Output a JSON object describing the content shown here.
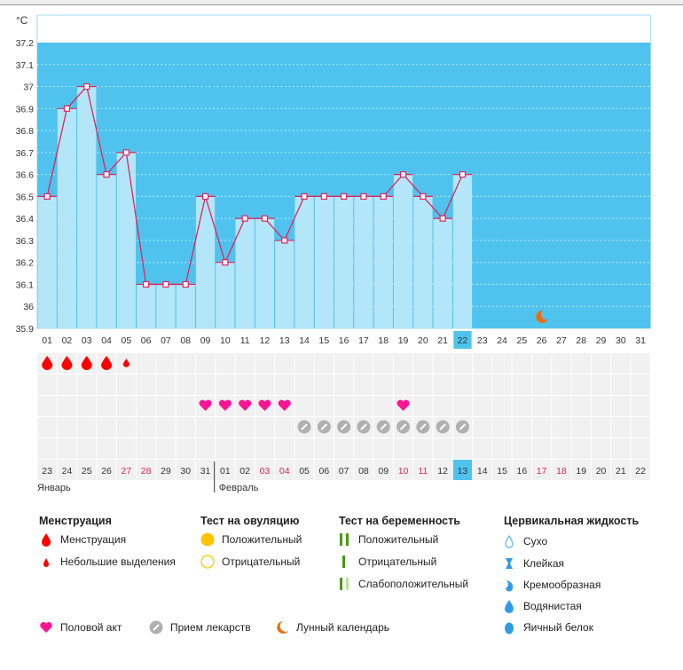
{
  "chart": {
    "unit": "°C",
    "y_ticks": [
      "37.2",
      "37.1",
      "37",
      "36.9",
      "36.8",
      "36.7",
      "36.6",
      "36.5",
      "36.4",
      "36.3",
      "36.2",
      "36.1",
      "36",
      "35.9"
    ],
    "ylim": [
      35.9,
      37.2
    ],
    "cycle_days": [
      "01",
      "02",
      "03",
      "04",
      "05",
      "06",
      "07",
      "08",
      "09",
      "10",
      "11",
      "12",
      "13",
      "14",
      "15",
      "16",
      "17",
      "18",
      "19",
      "20",
      "21",
      "22",
      "23",
      "24",
      "25",
      "26",
      "27",
      "28",
      "29",
      "30",
      "31"
    ],
    "temperatures": [
      36.5,
      36.9,
      37.0,
      36.6,
      36.7,
      36.1,
      36.1,
      36.1,
      36.5,
      36.2,
      36.4,
      36.4,
      36.3,
      36.5,
      36.5,
      36.5,
      36.5,
      36.5,
      36.6,
      36.5,
      36.4,
      36.6
    ],
    "current_day_index": 21,
    "moon_day_index": 25,
    "colors": {
      "bg": "#4fc3ee",
      "bar": "#b3e6f8",
      "line": "#e0245e",
      "today": "#4fc3ee"
    }
  },
  "grid": {
    "menstruation": [
      "heavy",
      "heavy",
      "heavy",
      "heavy",
      "light"
    ],
    "intercourse_days": [
      8,
      9,
      10,
      11,
      12,
      18
    ],
    "pill_days": [
      13,
      14,
      15,
      16,
      17,
      18,
      19,
      20,
      21
    ],
    "dates": [
      "23",
      "24",
      "25",
      "26",
      "27",
      "28",
      "29",
      "30",
      "31",
      "01",
      "02",
      "03",
      "04",
      "05",
      "06",
      "07",
      "08",
      "09",
      "10",
      "11",
      "12",
      "13",
      "14",
      "15",
      "16",
      "17",
      "18",
      "19",
      "20",
      "21",
      "22"
    ],
    "weekend_indices": [
      4,
      5,
      11,
      12,
      18,
      19,
      25,
      26
    ],
    "today_index": 21,
    "month_jan": "Январь",
    "month_feb": "Февраль"
  },
  "legend": {
    "menstruation": {
      "title": "Менструация",
      "items": [
        "Менструация",
        "Небольшие выделения"
      ]
    },
    "ovulation": {
      "title": "Тест на овуляцию",
      "items": [
        "Положительный",
        "Отрицательный"
      ]
    },
    "pregnancy": {
      "title": "Тест на беременность",
      "items": [
        "Положительный",
        "Отрицательный",
        "Слабоположительный"
      ]
    },
    "cervical": {
      "title": "Цервикальная жидкость",
      "items": [
        "Сухо",
        "Клейкая",
        "Кремообразная",
        "Водянистая",
        "Яичный белок"
      ]
    },
    "other": [
      "Половой акт",
      "Прием лекарств",
      "Лунный календарь"
    ]
  }
}
